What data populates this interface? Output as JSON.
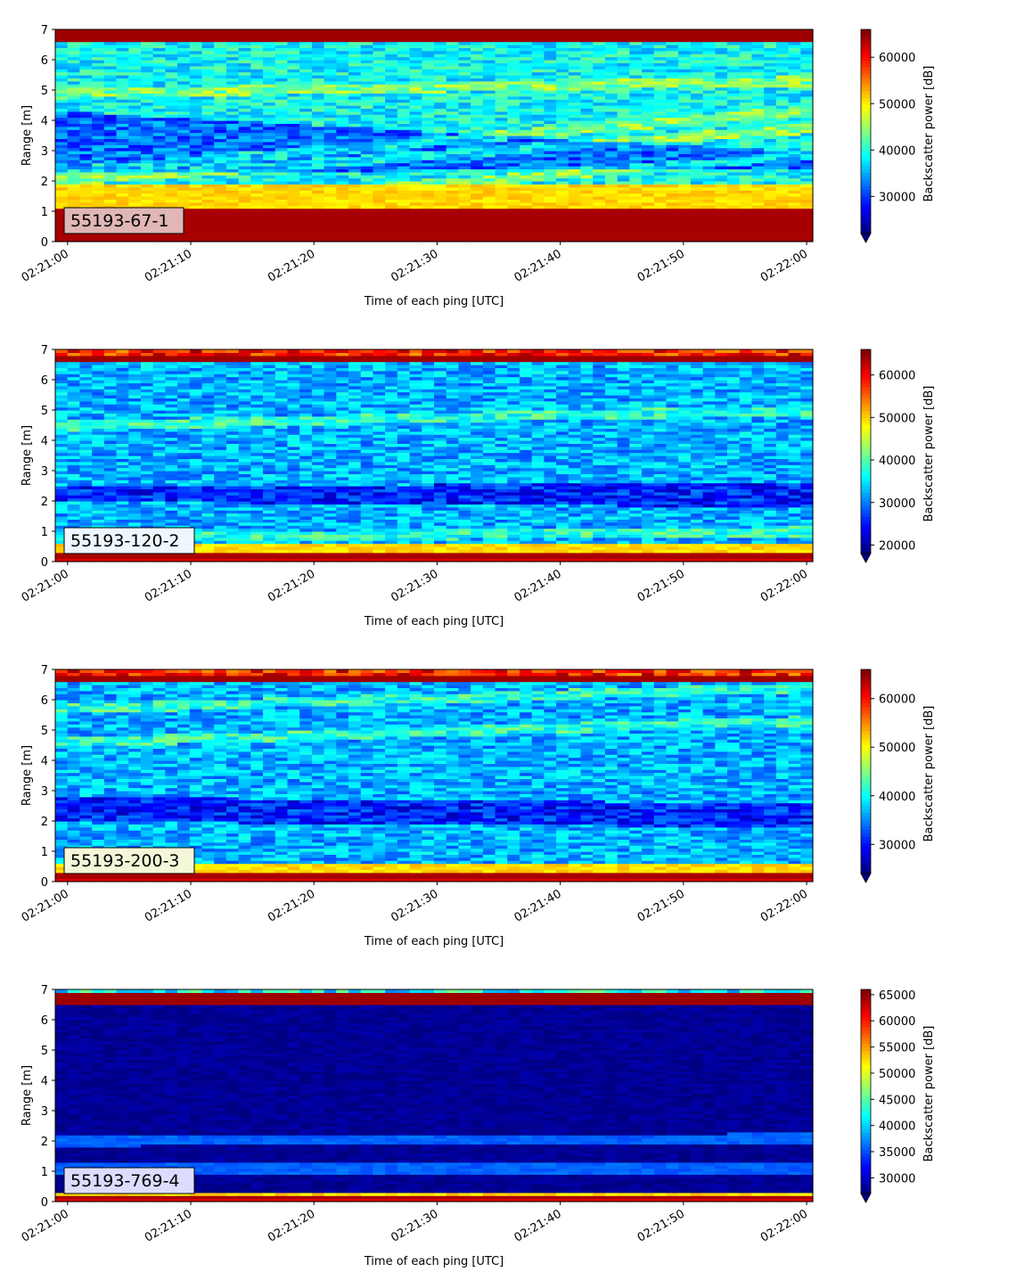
{
  "chart_data": [
    {
      "type": "heatmap",
      "label": "55193-67-1",
      "xlabel": "Time of each ping [UTC]",
      "ylabel": "Range [m]",
      "xticks": [
        "02:21:00",
        "02:21:10",
        "02:21:20",
        "02:21:30",
        "02:21:40",
        "02:21:50",
        "02:22:00"
      ],
      "yticks": [
        "0",
        "1",
        "2",
        "3",
        "4",
        "5",
        "6",
        "7"
      ],
      "ylim": [
        0,
        7
      ],
      "colorbar": {
        "label": "Backscatter power [dB]",
        "ticks": [
          "30000",
          "40000",
          "50000",
          "60000"
        ],
        "range": [
          22000,
          66000
        ],
        "extend": "min"
      },
      "label_box_color": "#e0b6b6",
      "pattern": {
        "bottom_red_end": 1.1,
        "yellow_band": [
          1.1,
          1.9
        ],
        "top_red_start": 6.55,
        "bg_level": 0.38,
        "dark_stripe": [
          2.3,
          4.3,
          2.4,
          3.0
        ],
        "bright_stripes": [
          [
            2.0,
            3.7
          ],
          [
            1.0,
            2.8
          ],
          [
            4.9,
            5.3
          ],
          [
            2.3,
            4.3
          ]
        ],
        "top_band": "solid"
      }
    },
    {
      "type": "heatmap",
      "label": "55193-120-2",
      "xlabel": "Time of each ping [UTC]",
      "ylabel": "Range [m]",
      "xticks": [
        "02:21:00",
        "02:21:10",
        "02:21:20",
        "02:21:30",
        "02:21:40",
        "02:21:50",
        "02:22:00"
      ],
      "yticks": [
        "0",
        "1",
        "2",
        "3",
        "4",
        "5",
        "6",
        "7"
      ],
      "ylim": [
        0,
        7
      ],
      "colorbar": {
        "label": "Backscatter power [dB]",
        "ticks": [
          "20000",
          "30000",
          "40000",
          "50000",
          "60000"
        ],
        "range": [
          18000,
          66000
        ],
        "extend": "min"
      },
      "label_box_color": "#eef6ff",
      "pattern": {
        "bottom_red_end": 0.35,
        "yellow_band": [
          0.35,
          0.6
        ],
        "top_red_start": 6.55,
        "bg_level": 0.3,
        "dark_stripe": [
          2.0,
          2.5,
          1.8,
          2.6
        ],
        "bright_stripes": [
          [
            4.5,
            5.0
          ],
          [
            0.8,
            1.0
          ]
        ],
        "top_band": "mixed"
      }
    },
    {
      "type": "heatmap",
      "label": "55193-200-3",
      "xlabel": "Time of each ping [UTC]",
      "ylabel": "Range [m]",
      "xticks": [
        "02:21:00",
        "02:21:10",
        "02:21:20",
        "02:21:30",
        "02:21:40",
        "02:21:50",
        "02:22:00"
      ],
      "yticks": [
        "0",
        "1",
        "2",
        "3",
        "4",
        "5",
        "6",
        "7"
      ],
      "ylim": [
        0,
        7
      ],
      "colorbar": {
        "label": "Backscatter power [dB]",
        "ticks": [
          "30000",
          "40000",
          "50000",
          "60000"
        ],
        "range": [
          24000,
          66000
        ],
        "extend": "min"
      },
      "label_box_color": "#f4f8d8",
      "pattern": {
        "bottom_red_end": 0.35,
        "yellow_band": [
          0.35,
          0.6
        ],
        "top_red_start": 6.55,
        "bg_level": 0.3,
        "dark_stripe": [
          2.0,
          2.8,
          1.8,
          2.6
        ],
        "bright_stripes": [
          [
            4.6,
            5.3
          ],
          [
            5.7,
            6.4
          ]
        ],
        "top_band": "mixed"
      }
    },
    {
      "type": "heatmap",
      "label": "55193-769-4",
      "xlabel": "Time of each ping [UTC]",
      "ylabel": "Range [m]",
      "xticks": [
        "02:21:00",
        "02:21:10",
        "02:21:20",
        "02:21:30",
        "02:21:40",
        "02:21:50",
        "02:22:00"
      ],
      "yticks": [
        "0",
        "1",
        "2",
        "3",
        "4",
        "5",
        "6",
        "7"
      ],
      "ylim": [
        0,
        7
      ],
      "colorbar": {
        "label": "Backscatter power [dB]",
        "ticks": [
          "30000",
          "35000",
          "40000",
          "45000",
          "50000",
          "55000",
          "60000",
          "65000"
        ],
        "range": [
          27000,
          66000
        ],
        "extend": "min"
      },
      "label_box_color": "#dcdcff",
      "pattern": {
        "bottom_red_end": 0.25,
        "yellow_band": [
          0.25,
          0.35
        ],
        "top_red_start": 6.45,
        "bg_level": 0.02,
        "dark_stripe": null,
        "bright_stripes": [
          [
            1.1,
            1.1
          ],
          [
            2.0,
            2.1
          ]
        ],
        "top_band": "thin"
      }
    }
  ]
}
